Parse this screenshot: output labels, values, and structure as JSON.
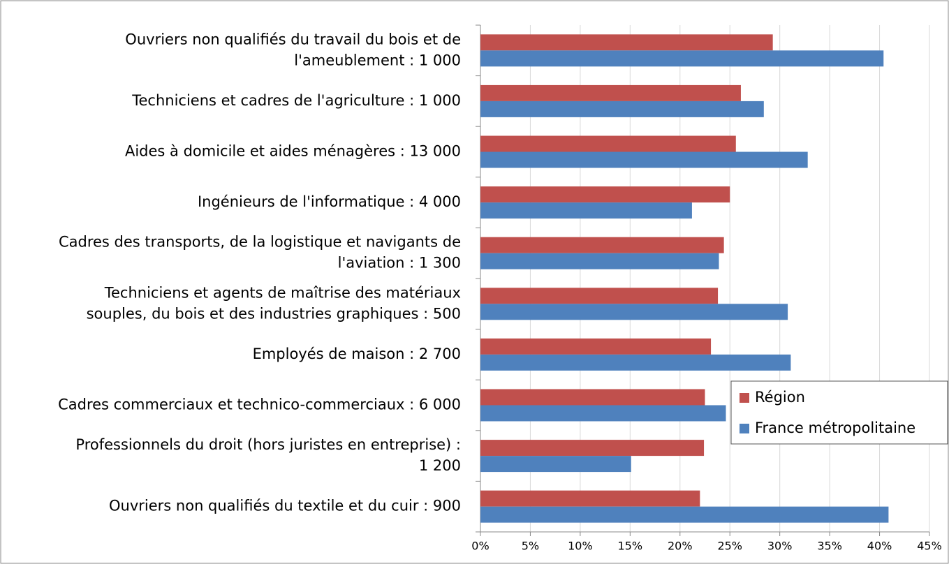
{
  "chart_data": {
    "type": "hbar",
    "categories": [
      "Ouvriers non qualifiés du travail du bois et de\nl'ameublement : 1 000",
      "Techniciens et cadres de l'agriculture : 1 000",
      "Aides à domicile et aides ménagères : 13 000",
      "Ingénieurs de l'informatique : 4 000",
      "Cadres des transports, de la logistique et navigants de\nl'aviation : 1 300",
      "Techniciens et agents de maîtrise des matériaux\nsouples, du bois et des industries graphiques : 500",
      "Employés de maison : 2 700",
      "Cadres commerciaux et technico-commerciaux : 6 000",
      "Professionnels du droit (hors juristes en entreprise) :\n1 200",
      "Ouvriers non qualifiés du textile et du cuir : 900"
    ],
    "series": [
      {
        "name": "Région",
        "color": "#c0504d",
        "values": [
          29.3,
          26.1,
          25.6,
          25.0,
          24.4,
          23.8,
          23.1,
          22.5,
          22.4,
          22.0
        ]
      },
      {
        "name": "France métropolitaine",
        "color": "#4f81bd",
        "values": [
          40.4,
          28.4,
          32.8,
          21.2,
          23.9,
          30.8,
          31.1,
          24.6,
          15.1,
          40.9
        ]
      }
    ],
    "xlim": [
      0,
      45
    ],
    "xticks": [
      {
        "value": 0,
        "label": "0%"
      },
      {
        "value": 5,
        "label": "5%"
      },
      {
        "value": 10,
        "label": "10%"
      },
      {
        "value": 15,
        "label": "15%"
      },
      {
        "value": 20,
        "label": "20%"
      },
      {
        "value": 25,
        "label": "25%"
      },
      {
        "value": 30,
        "label": "30%"
      },
      {
        "value": 35,
        "label": "35%"
      },
      {
        "value": 40,
        "label": "40%"
      },
      {
        "value": 45,
        "label": "45%"
      }
    ],
    "grid": true,
    "legend": "right"
  }
}
